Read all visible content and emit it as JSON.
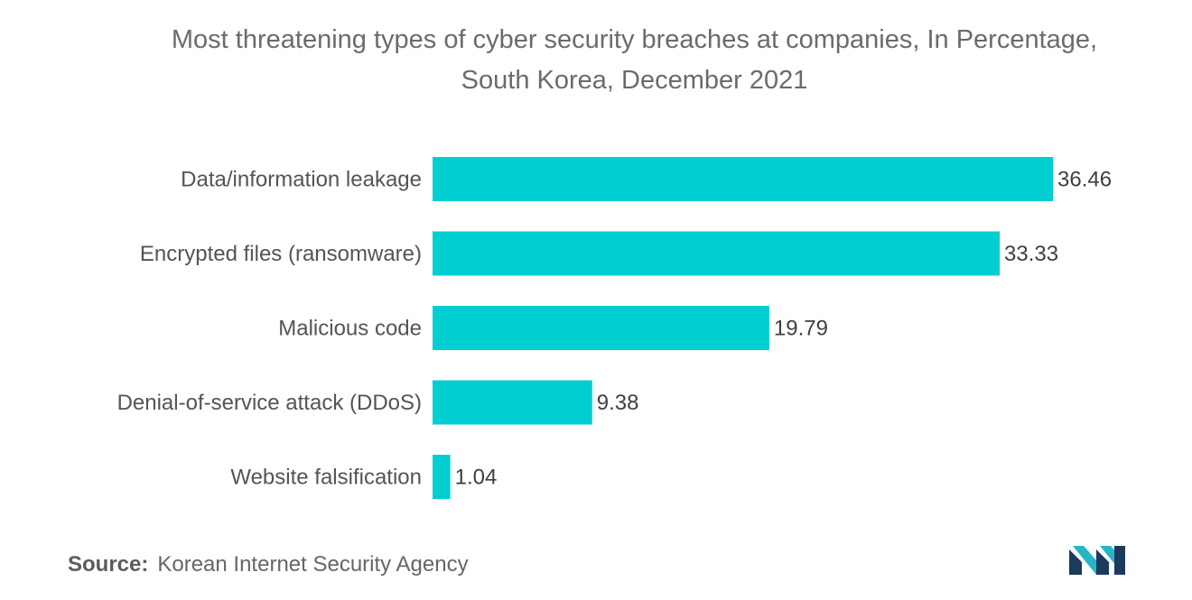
{
  "chart_data": {
    "type": "bar",
    "orientation": "horizontal",
    "title": "Most threatening types of cyber security breaches at companies, In Percentage, South Korea, December 2021",
    "title_lines": [
      "Most threatening types of cyber security breaches at companies, In Percentage,",
      "South Korea, December 2021"
    ],
    "categories": [
      "Data/information leakage",
      "Encrypted files (ransomware)",
      "Malicious code",
      "Denial-of-service attack (DDoS)",
      "Website falsification"
    ],
    "values": [
      36.46,
      33.33,
      19.79,
      9.38,
      1.04
    ],
    "value_labels": [
      "36.46",
      "33.33",
      "19.79",
      "9.38",
      "1.04"
    ],
    "xlabel": "",
    "ylabel": "",
    "xlim": [
      0,
      36.46
    ],
    "bar_color": "#00CED1",
    "grid": false,
    "legend": "none",
    "data_labels": true
  },
  "footer": {
    "source_label": "Source:",
    "source_text": "Korean Internet Security Agency"
  },
  "logo": {
    "icon": "mordor-intelligence-logo-icon",
    "colors": [
      "#1b3a5c",
      "#26b6c8"
    ]
  }
}
